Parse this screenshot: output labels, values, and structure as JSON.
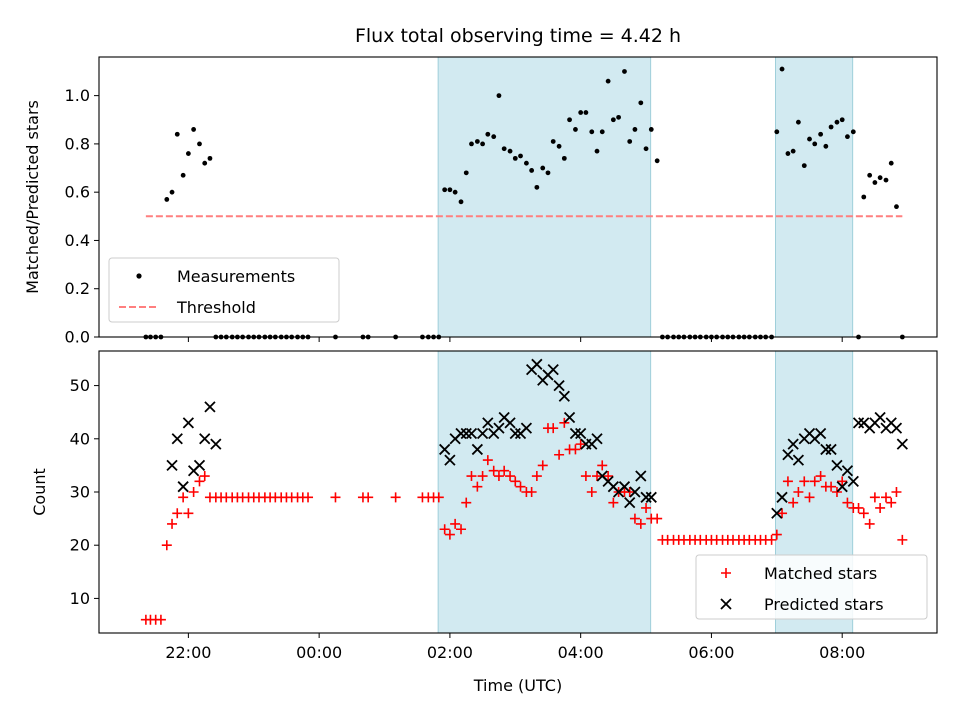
{
  "chart_data": [
    {
      "type": "scatter",
      "title": "Flux total observing time = 4.42 h",
      "xlabel": "",
      "ylabel": "Matched/Predicted stars",
      "xlim_hours": [
        20.633,
        33.45
      ],
      "ylim": [
        0,
        1.16
      ],
      "xtick_hours": [
        22,
        24,
        26,
        28,
        30,
        32
      ],
      "ytick_values": [
        0.0,
        0.2,
        0.4,
        0.6,
        0.8,
        1.0
      ],
      "ytick_labels": [
        "0.0",
        "0.2",
        "0.4",
        "0.6",
        "0.8",
        "1.0"
      ],
      "shaded_spans_hours": [
        [
          25.82,
          29.07
        ],
        [
          30.98,
          32.16
        ]
      ],
      "shade_color": "#add8e6",
      "legend": {
        "placement": "lower-left",
        "entries": [
          "Measurements",
          "Threshold"
        ]
      },
      "series": [
        {
          "name": "Measurements",
          "kind": "points",
          "color": "#000000",
          "x": [
            21.35,
            21.42,
            21.5,
            21.58,
            21.67,
            21.75,
            21.83,
            21.92,
            22.0,
            22.08,
            22.17,
            22.25,
            22.33,
            22.42,
            22.5,
            22.58,
            22.67,
            22.75,
            22.83,
            22.92,
            23.0,
            23.08,
            23.17,
            23.25,
            23.33,
            23.42,
            23.5,
            23.58,
            23.67,
            23.75,
            23.83,
            24.25,
            24.67,
            24.75,
            25.17,
            25.58,
            25.67,
            25.75,
            25.83,
            25.92,
            26.0,
            26.08,
            26.17,
            26.25,
            26.33,
            26.42,
            26.5,
            26.58,
            26.67,
            26.75,
            26.83,
            26.92,
            27.0,
            27.08,
            27.17,
            27.25,
            27.33,
            27.42,
            27.5,
            27.58,
            27.67,
            27.75,
            27.83,
            27.92,
            28.0,
            28.08,
            28.17,
            28.25,
            28.33,
            28.42,
            28.5,
            28.58,
            28.67,
            28.75,
            28.83,
            28.92,
            29.0,
            29.08,
            29.17,
            29.25,
            29.33,
            29.42,
            29.5,
            29.58,
            29.67,
            29.75,
            29.83,
            29.92,
            30.0,
            30.08,
            30.17,
            30.25,
            30.33,
            30.42,
            30.5,
            30.58,
            30.67,
            30.75,
            30.83,
            30.92,
            31.0,
            31.08,
            31.17,
            31.25,
            31.33,
            31.42,
            31.5,
            31.58,
            31.67,
            31.75,
            31.83,
            31.92,
            32.0,
            32.08,
            32.17,
            32.25,
            32.33,
            32.42,
            32.5,
            32.58,
            32.67,
            32.75,
            32.83,
            32.92
          ],
          "y": [
            0,
            0,
            0,
            0,
            0.57,
            0.6,
            0.84,
            0.67,
            0.76,
            0.86,
            0.8,
            0.72,
            0.74,
            0,
            0,
            0,
            0,
            0,
            0,
            0,
            0,
            0,
            0,
            0,
            0,
            0,
            0,
            0,
            0,
            0,
            0,
            0,
            0,
            0,
            0,
            0,
            0,
            0,
            0,
            0.61,
            0.61,
            0.6,
            0.56,
            0.68,
            0.8,
            0.81,
            0.8,
            0.84,
            0.83,
            1.0,
            0.78,
            0.77,
            0.74,
            0.75,
            0.72,
            0.69,
            0.62,
            0.7,
            0.68,
            0.81,
            0.79,
            0.74,
            0.9,
            0.86,
            0.93,
            0.93,
            0.85,
            0.77,
            0.85,
            1.06,
            0.9,
            0.91,
            1.1,
            0.81,
            0.86,
            0.97,
            0.78,
            0.86,
            0.73,
            0,
            0,
            0,
            0,
            0,
            0,
            0,
            0,
            0,
            0,
            0,
            0,
            0,
            0,
            0,
            0,
            0,
            0,
            0,
            0,
            0,
            0.85,
            1.11,
            0.76,
            0.77,
            0.89,
            0.71,
            0.82,
            0.8,
            0.84,
            0.79,
            0.87,
            0.89,
            0.9,
            0.83,
            0.85,
            0,
            0.58,
            0.67,
            0.64,
            0.66,
            0.65,
            0.72,
            0.54,
            0
          ]
        },
        {
          "name": "Threshold",
          "kind": "dashed-line",
          "color": "#ff7f7f",
          "x": [
            21.35,
            32.92
          ],
          "y": [
            0.5,
            0.5
          ]
        }
      ]
    },
    {
      "type": "scatter",
      "title": "",
      "xlabel": "Time (UTC)",
      "ylabel": "Count",
      "xlim_hours": [
        20.633,
        33.45
      ],
      "ylim": [
        3.5,
        56.5
      ],
      "xtick_hours": [
        22,
        24,
        26,
        28,
        30,
        32
      ],
      "xtick_labels": [
        "22:00",
        "00:00",
        "02:00",
        "04:00",
        "06:00",
        "08:00"
      ],
      "ytick_values": [
        10,
        20,
        30,
        40,
        50
      ],
      "ytick_labels": [
        "10",
        "20",
        "30",
        "40",
        "50"
      ],
      "shaded_spans_hours": [
        [
          25.82,
          29.07
        ],
        [
          30.98,
          32.16
        ]
      ],
      "shade_color": "#add8e6",
      "legend": {
        "placement": "lower-right",
        "entries": [
          "Matched stars",
          "Predicted stars"
        ]
      },
      "series": [
        {
          "name": "Matched stars",
          "kind": "plus",
          "color": "#ff0000",
          "x": [
            21.35,
            21.42,
            21.5,
            21.58,
            21.67,
            21.75,
            21.83,
            21.92,
            22.0,
            22.08,
            22.17,
            22.25,
            22.33,
            22.42,
            22.5,
            22.58,
            22.67,
            22.75,
            22.83,
            22.92,
            23.0,
            23.08,
            23.17,
            23.25,
            23.33,
            23.42,
            23.5,
            23.58,
            23.67,
            23.75,
            23.83,
            24.25,
            24.67,
            24.75,
            25.17,
            25.58,
            25.67,
            25.75,
            25.83,
            25.92,
            26.0,
            26.08,
            26.17,
            26.25,
            26.33,
            26.42,
            26.5,
            26.58,
            26.67,
            26.75,
            26.83,
            26.92,
            27.0,
            27.08,
            27.17,
            27.25,
            27.33,
            27.42,
            27.5,
            27.58,
            27.67,
            27.75,
            27.83,
            27.92,
            28.0,
            28.08,
            28.17,
            28.25,
            28.33,
            28.42,
            28.5,
            28.58,
            28.67,
            28.75,
            28.83,
            28.92,
            29.0,
            29.08,
            29.17,
            29.25,
            29.33,
            29.42,
            29.5,
            29.58,
            29.67,
            29.75,
            29.83,
            29.92,
            30.0,
            30.08,
            30.17,
            30.25,
            30.33,
            30.42,
            30.5,
            30.58,
            30.67,
            30.75,
            30.83,
            30.92,
            31.0,
            31.08,
            31.17,
            31.25,
            31.33,
            31.42,
            31.5,
            31.58,
            31.67,
            31.75,
            31.83,
            31.92,
            32.0,
            32.08,
            32.17,
            32.25,
            32.33,
            32.42,
            32.5,
            32.58,
            32.67,
            32.75,
            32.83,
            32.92
          ],
          "y": [
            6,
            6,
            6,
            6,
            20,
            24,
            26,
            29,
            26,
            30,
            32,
            33,
            29,
            29,
            29,
            29,
            29,
            29,
            29,
            29,
            29,
            29,
            29,
            29,
            29,
            29,
            29,
            29,
            29,
            29,
            29,
            29,
            29,
            29,
            29,
            29,
            29,
            29,
            29,
            23,
            22,
            24,
            23,
            28,
            33,
            31,
            33,
            36,
            34,
            33,
            34,
            33,
            32,
            31,
            30,
            30,
            33,
            35,
            42,
            42,
            37,
            43,
            38,
            38,
            39,
            33,
            30,
            33,
            35,
            33,
            28,
            30,
            30,
            30,
            25,
            24,
            27,
            25,
            25,
            21,
            21,
            21,
            21,
            21,
            21,
            21,
            21,
            21,
            21,
            21,
            21,
            21,
            21,
            21,
            21,
            21,
            21,
            21,
            21,
            21,
            22,
            26,
            32,
            28,
            30,
            32,
            29,
            32,
            33,
            31,
            31,
            30,
            32,
            28,
            27,
            27,
            26,
            24,
            29,
            27,
            29,
            28,
            30,
            21
          ]
        },
        {
          "name": "Predicted stars",
          "kind": "cross",
          "color": "#000000",
          "x": [
            21.75,
            21.83,
            21.92,
            22.0,
            22.08,
            22.17,
            22.25,
            22.33,
            22.42,
            25.92,
            26.0,
            26.08,
            26.17,
            26.25,
            26.33,
            26.42,
            26.5,
            26.58,
            26.67,
            26.75,
            26.83,
            26.92,
            27.0,
            27.08,
            27.17,
            27.25,
            27.33,
            27.42,
            27.5,
            27.58,
            27.67,
            27.75,
            27.83,
            27.92,
            28.0,
            28.08,
            28.17,
            28.25,
            28.33,
            28.42,
            28.5,
            28.58,
            28.67,
            28.75,
            28.83,
            28.92,
            29.0,
            29.08,
            31.0,
            31.08,
            31.17,
            31.25,
            31.33,
            31.42,
            31.5,
            31.58,
            31.67,
            31.75,
            31.83,
            31.92,
            32.0,
            32.08,
            32.17,
            32.25,
            32.33,
            32.42,
            32.5,
            32.58,
            32.67,
            32.75,
            32.83,
            32.92
          ],
          "y": [
            35,
            40,
            31,
            43,
            34,
            35,
            40,
            46,
            39,
            38,
            36,
            40,
            41,
            41,
            41,
            38,
            41,
            43,
            41,
            42,
            44,
            43,
            41,
            41,
            42,
            53,
            54,
            51,
            52,
            53,
            50,
            48,
            44,
            41,
            41,
            39,
            39,
            40,
            33,
            32,
            31,
            30,
            31,
            28,
            30,
            33,
            29,
            29,
            26,
            29,
            37,
            39,
            36,
            40,
            41,
            40,
            41,
            38,
            38,
            35,
            31,
            34,
            32,
            43,
            43,
            42,
            43,
            44,
            42,
            43,
            42,
            39
          ]
        }
      ]
    }
  ]
}
